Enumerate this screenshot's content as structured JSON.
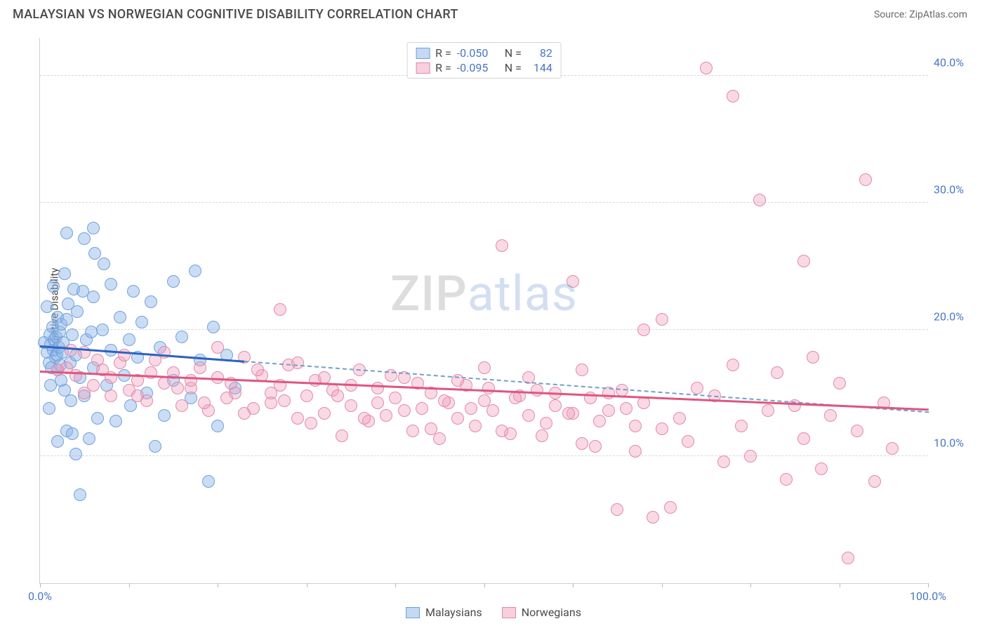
{
  "header": {
    "title": "MALAYSIAN VS NORWEGIAN COGNITIVE DISABILITY CORRELATION CHART",
    "source": "Source: ZipAtlas.com"
  },
  "chart": {
    "type": "scatter",
    "ylabel": "Cognitive Disability",
    "xlim": [
      0,
      100
    ],
    "ylim": [
      0,
      43
    ],
    "background_color": "#ffffff",
    "grid_color": "#d7d7d7",
    "yticks": [
      {
        "v": 10,
        "label": "10.0%"
      },
      {
        "v": 20,
        "label": "20.0%"
      },
      {
        "v": 30,
        "label": "30.0%"
      },
      {
        "v": 40,
        "label": "40.0%"
      }
    ],
    "xtick_marks": [
      0,
      10,
      20,
      30,
      40,
      50,
      60,
      70,
      80,
      90,
      100
    ],
    "xtick_labels": [
      {
        "v": 0,
        "label": "0.0%"
      },
      {
        "v": 100,
        "label": "100.0%"
      }
    ],
    "marker_radius": 9,
    "marker_border_width": 1,
    "series": [
      {
        "name": "Malaysians",
        "fill": "rgba(140,180,230,0.45)",
        "stroke": "#6fa1dd",
        "points": [
          [
            0.5,
            19
          ],
          [
            0.8,
            18.2
          ],
          [
            1.0,
            17.4
          ],
          [
            1.1,
            19.6
          ],
          [
            1.2,
            18.8
          ],
          [
            1.3,
            17.0
          ],
          [
            1.4,
            20.2
          ],
          [
            1.5,
            18.4
          ],
          [
            1.6,
            19.2
          ],
          [
            1.7,
            17.8
          ],
          [
            1.8,
            19.4
          ],
          [
            1.9,
            18.0
          ],
          [
            2.0,
            16.8
          ],
          [
            2.0,
            21.0
          ],
          [
            2.1,
            18.6
          ],
          [
            2.2,
            19.8
          ],
          [
            2.3,
            17.2
          ],
          [
            2.4,
            20.4
          ],
          [
            2.5,
            18.2
          ],
          [
            2.6,
            19.0
          ],
          [
            2.8,
            15.2
          ],
          [
            3.0,
            20.8
          ],
          [
            3.0,
            12.0
          ],
          [
            3.2,
            22.0
          ],
          [
            3.4,
            17.4
          ],
          [
            3.5,
            14.4
          ],
          [
            3.6,
            19.6
          ],
          [
            3.8,
            23.2
          ],
          [
            4.0,
            18.0
          ],
          [
            4.0,
            10.2
          ],
          [
            4.2,
            21.4
          ],
          [
            4.5,
            16.2
          ],
          [
            4.8,
            23.0
          ],
          [
            5.0,
            14.8
          ],
          [
            5.0,
            27.2
          ],
          [
            5.2,
            19.2
          ],
          [
            5.5,
            11.4
          ],
          [
            6.0,
            22.6
          ],
          [
            6.0,
            17.0
          ],
          [
            6.2,
            26.0
          ],
          [
            6.5,
            13.0
          ],
          [
            7.0,
            20.0
          ],
          [
            7.2,
            25.2
          ],
          [
            7.5,
            15.6
          ],
          [
            8.0,
            18.4
          ],
          [
            8.0,
            23.6
          ],
          [
            8.5,
            12.8
          ],
          [
            9.0,
            21.0
          ],
          [
            9.5,
            16.4
          ],
          [
            10.0,
            19.2
          ],
          [
            10.2,
            14.0
          ],
          [
            10.5,
            23.0
          ],
          [
            11.0,
            17.8
          ],
          [
            11.5,
            20.6
          ],
          [
            12.0,
            15.0
          ],
          [
            12.5,
            22.2
          ],
          [
            13.0,
            10.8
          ],
          [
            13.5,
            18.6
          ],
          [
            14.0,
            13.2
          ],
          [
            15.0,
            16.0
          ],
          [
            15.0,
            23.8
          ],
          [
            16.0,
            19.4
          ],
          [
            17.0,
            14.6
          ],
          [
            17.5,
            24.6
          ],
          [
            18.0,
            17.6
          ],
          [
            19.0,
            8.0
          ],
          [
            19.5,
            20.2
          ],
          [
            20.0,
            12.4
          ],
          [
            21.0,
            18.0
          ],
          [
            22.0,
            15.4
          ],
          [
            2.0,
            11.2
          ],
          [
            3.0,
            27.6
          ],
          [
            1.5,
            23.4
          ],
          [
            4.5,
            7.0
          ],
          [
            6.0,
            28.0
          ],
          [
            2.8,
            24.4
          ],
          [
            1.2,
            15.6
          ],
          [
            0.8,
            21.8
          ],
          [
            1.0,
            13.8
          ],
          [
            2.4,
            16.0
          ],
          [
            3.6,
            11.8
          ],
          [
            5.8,
            19.8
          ]
        ],
        "trend": {
          "color": "#2c62c2",
          "width": 3,
          "style": "solid",
          "x1": 0,
          "y1": 18.8,
          "x2": 23,
          "y2": 17.6
        },
        "trend_ext": {
          "color": "#6fa1c8",
          "width": 2,
          "style": "dashed",
          "x1": 23,
          "y1": 17.6,
          "x2": 100,
          "y2": 13.6
        }
      },
      {
        "name": "Norwegians",
        "fill": "rgba(240,160,190,0.4)",
        "stroke": "#e389a8",
        "points": [
          [
            3.0,
            17.0
          ],
          [
            4.0,
            16.4
          ],
          [
            5.0,
            18.2
          ],
          [
            6.0,
            15.6
          ],
          [
            7.0,
            16.8
          ],
          [
            8.0,
            14.8
          ],
          [
            9.0,
            17.4
          ],
          [
            10.0,
            15.2
          ],
          [
            11.0,
            16.0
          ],
          [
            12.0,
            14.4
          ],
          [
            13.0,
            17.6
          ],
          [
            14.0,
            15.8
          ],
          [
            15.0,
            16.6
          ],
          [
            16.0,
            14.0
          ],
          [
            17.0,
            15.4
          ],
          [
            18.0,
            17.0
          ],
          [
            19.0,
            13.6
          ],
          [
            20.0,
            16.2
          ],
          [
            21.0,
            14.6
          ],
          [
            22.0,
            15.0
          ],
          [
            23.0,
            17.8
          ],
          [
            24.0,
            13.8
          ],
          [
            25.0,
            16.4
          ],
          [
            26.0,
            14.2
          ],
          [
            27.0,
            15.6
          ],
          [
            27.0,
            21.6
          ],
          [
            28.0,
            17.2
          ],
          [
            29.0,
            13.0
          ],
          [
            30.0,
            14.8
          ],
          [
            31.0,
            16.0
          ],
          [
            32.0,
            13.4
          ],
          [
            33.0,
            15.2
          ],
          [
            34.0,
            11.6
          ],
          [
            35.0,
            14.0
          ],
          [
            36.0,
            16.8
          ],
          [
            37.0,
            12.8
          ],
          [
            38.0,
            15.4
          ],
          [
            39.0,
            13.2
          ],
          [
            40.0,
            14.6
          ],
          [
            41.0,
            16.2
          ],
          [
            42.0,
            12.0
          ],
          [
            43.0,
            13.8
          ],
          [
            44.0,
            15.0
          ],
          [
            45.0,
            11.4
          ],
          [
            46.0,
            14.2
          ],
          [
            47.0,
            13.0
          ],
          [
            48.0,
            15.6
          ],
          [
            49.0,
            12.4
          ],
          [
            50.0,
            14.4
          ],
          [
            50.0,
            17.0
          ],
          [
            51.0,
            13.6
          ],
          [
            52.0,
            26.6
          ],
          [
            53.0,
            11.8
          ],
          [
            54.0,
            14.8
          ],
          [
            55.0,
            13.2
          ],
          [
            56.0,
            15.2
          ],
          [
            57.0,
            12.6
          ],
          [
            58.0,
            14.0
          ],
          [
            60.0,
            13.4
          ],
          [
            60.0,
            23.8
          ],
          [
            61.0,
            11.0
          ],
          [
            62.0,
            14.6
          ],
          [
            63.0,
            12.8
          ],
          [
            64.0,
            15.0
          ],
          [
            65.0,
            5.8
          ],
          [
            66.0,
            13.8
          ],
          [
            67.0,
            10.4
          ],
          [
            68.0,
            14.2
          ],
          [
            68.0,
            20.0
          ],
          [
            69.0,
            5.2
          ],
          [
            70.0,
            20.8
          ],
          [
            70.0,
            12.2
          ],
          [
            71.0,
            6.0
          ],
          [
            72.0,
            13.0
          ],
          [
            73.0,
            11.2
          ],
          [
            74.0,
            15.4
          ],
          [
            75.0,
            40.6
          ],
          [
            76.0,
            14.8
          ],
          [
            77.0,
            9.6
          ],
          [
            78.0,
            17.2
          ],
          [
            78.0,
            38.4
          ],
          [
            79.0,
            12.4
          ],
          [
            80.0,
            10.0
          ],
          [
            81.0,
            30.2
          ],
          [
            82.0,
            13.6
          ],
          [
            83.0,
            16.6
          ],
          [
            84.0,
            8.2
          ],
          [
            85.0,
            14.0
          ],
          [
            86.0,
            25.4
          ],
          [
            86.0,
            11.4
          ],
          [
            87.0,
            17.8
          ],
          [
            88.0,
            9.0
          ],
          [
            89.0,
            13.2
          ],
          [
            90.0,
            15.8
          ],
          [
            91.0,
            2.0
          ],
          [
            92.0,
            12.0
          ],
          [
            93.0,
            31.8
          ],
          [
            94.0,
            8.0
          ],
          [
            95.0,
            14.2
          ],
          [
            96.0,
            10.6
          ],
          [
            2.0,
            16.8
          ],
          [
            3.5,
            18.4
          ],
          [
            5.0,
            15.0
          ],
          [
            6.5,
            17.6
          ],
          [
            8.0,
            16.2
          ],
          [
            9.5,
            18.0
          ],
          [
            11.0,
            14.8
          ],
          [
            12.5,
            16.6
          ],
          [
            14.0,
            18.2
          ],
          [
            15.5,
            15.4
          ],
          [
            17.0,
            16.0
          ],
          [
            18.5,
            14.2
          ],
          [
            20.0,
            18.6
          ],
          [
            21.5,
            15.8
          ],
          [
            23.0,
            13.4
          ],
          [
            24.5,
            16.8
          ],
          [
            26.0,
            15.0
          ],
          [
            27.5,
            14.4
          ],
          [
            29.0,
            17.4
          ],
          [
            30.5,
            12.6
          ],
          [
            32.0,
            16.2
          ],
          [
            33.5,
            14.8
          ],
          [
            35.0,
            15.6
          ],
          [
            36.5,
            13.0
          ],
          [
            38.0,
            14.2
          ],
          [
            39.5,
            16.4
          ],
          [
            41.0,
            13.6
          ],
          [
            42.5,
            15.8
          ],
          [
            44.0,
            12.2
          ],
          [
            45.5,
            14.4
          ],
          [
            47.0,
            16.0
          ],
          [
            48.5,
            13.8
          ],
          [
            50.5,
            15.4
          ],
          [
            52.0,
            12.0
          ],
          [
            53.5,
            14.6
          ],
          [
            55.0,
            16.2
          ],
          [
            56.5,
            11.6
          ],
          [
            58.0,
            15.0
          ],
          [
            59.5,
            13.4
          ],
          [
            61.0,
            16.8
          ],
          [
            62.5,
            10.8
          ],
          [
            64.0,
            13.6
          ],
          [
            65.5,
            15.2
          ],
          [
            67.0,
            12.4
          ]
        ],
        "trend": {
          "color": "#e0557f",
          "width": 3,
          "style": "solid",
          "x1": 0,
          "y1": 16.8,
          "x2": 100,
          "y2": 13.8
        }
      }
    ],
    "legend_top": [
      {
        "swatch_fill": "rgba(140,180,230,0.5)",
        "swatch_stroke": "#6fa1dd",
        "r_label": "R =",
        "r_value": "-0.050",
        "n_label": "N =",
        "n_value": "82"
      },
      {
        "swatch_fill": "rgba(240,160,190,0.5)",
        "swatch_stroke": "#e389a8",
        "r_label": "R =",
        "r_value": "-0.095",
        "n_label": "N =",
        "n_value": "144"
      }
    ],
    "legend_bottom": [
      {
        "swatch_fill": "rgba(140,180,230,0.5)",
        "swatch_stroke": "#6fa1dd",
        "label": "Malaysians"
      },
      {
        "swatch_fill": "rgba(240,160,190,0.5)",
        "swatch_stroke": "#e389a8",
        "label": "Norwegians"
      }
    ]
  },
  "watermark": {
    "part1": "ZIP",
    "part2": "atlas"
  }
}
